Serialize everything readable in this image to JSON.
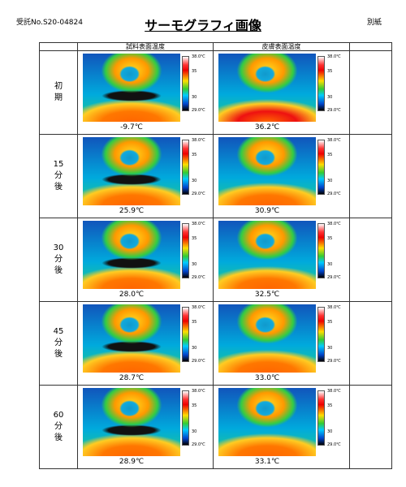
{
  "header": {
    "reference": "受託No.S20-04824",
    "title": "サーモグラフィ画像",
    "attachment": "別紙"
  },
  "table": {
    "columns": [
      "試料表面温度",
      "皮膚表面温度"
    ],
    "rows": [
      {
        "label": "初期",
        "sample": "-9.7℃",
        "skin": "36.2℃"
      },
      {
        "label": "15分後",
        "sample": "25.9℃",
        "skin": "30.9℃"
      },
      {
        "label": "30分後",
        "sample": "28.0℃",
        "skin": "32.5℃"
      },
      {
        "label": "45分後",
        "sample": "28.7℃",
        "skin": "33.0℃"
      },
      {
        "label": "60分後",
        "sample": "28.9℃",
        "skin": "33.1℃"
      }
    ]
  },
  "colorbar": {
    "max": "38.0℃",
    "upper": "35",
    "lower": "30",
    "min": "29.0℃"
  }
}
